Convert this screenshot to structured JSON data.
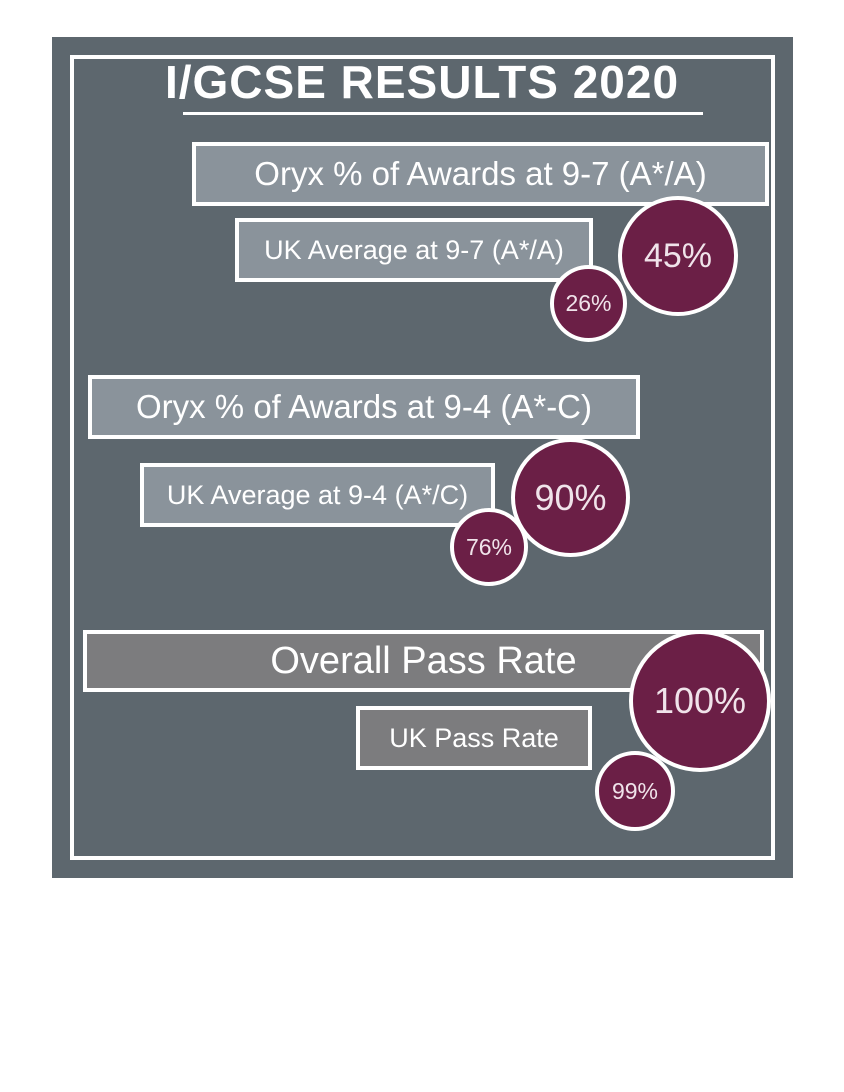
{
  "title": "I/GCSE RESULTS 2020",
  "rows": [
    {
      "primary_label": "Oryx % of Awards at 9-7 (A*/A)",
      "secondary_label": "UK Average at 9-7 (A*/A)",
      "primary_value": "45%",
      "secondary_value": "26%"
    },
    {
      "primary_label": "Oryx % of Awards at 9-4 (A*-C)",
      "secondary_label": "UK Average at 9-4 (A*/C)",
      "primary_value": "90%",
      "secondary_value": "76%"
    },
    {
      "primary_label": "Overall Pass Rate",
      "secondary_label": "UK Pass Rate",
      "primary_value": "100%",
      "secondary_value": "99%"
    }
  ],
  "colors": {
    "panel_background": "#5d676e",
    "bar_light_gray": "#8a939b",
    "bar_neutral_gray": "#7c7c7e",
    "circle_maroon": "#6b1f46",
    "border_white": "#ffffff",
    "text_white": "#ffffff"
  },
  "chart_data": {
    "type": "bar",
    "title": "I/GCSE RESULTS 2020",
    "categories": [
      "9-7 (A*/A)",
      "9-4 (A*-C)",
      "Pass Rate"
    ],
    "series": [
      {
        "name": "Oryx",
        "values": [
          45,
          90,
          100
        ]
      },
      {
        "name": "UK Average",
        "values": [
          26,
          76,
          99
        ]
      }
    ],
    "unit": "%",
    "ylim": [
      0,
      100
    ],
    "grid": false,
    "legend_position": "none",
    "annotations": [
      "45%",
      "26%",
      "90%",
      "76%",
      "100%",
      "99%"
    ]
  }
}
